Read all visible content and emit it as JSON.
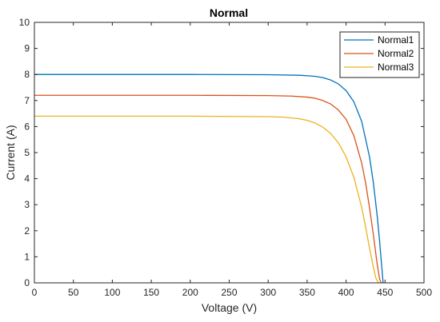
{
  "chart_data": {
    "type": "line",
    "title": "Normal",
    "xlabel": "Voltage (V)",
    "ylabel": "Current (A)",
    "xlim": [
      0,
      500
    ],
    "ylim": [
      0,
      10
    ],
    "xticks": [
      0,
      50,
      100,
      150,
      200,
      250,
      300,
      350,
      400,
      450,
      500
    ],
    "yticks": [
      0,
      1,
      2,
      3,
      4,
      5,
      6,
      7,
      8,
      9,
      10
    ],
    "grid": false,
    "legend_position": "top-right",
    "series": [
      {
        "name": "Normal1",
        "color": "#0072BD",
        "x": [
          0,
          100,
          200,
          300,
          340,
          360,
          370,
          380,
          390,
          400,
          410,
          420,
          430,
          435,
          440,
          443,
          446,
          447.5
        ],
        "y": [
          8.0,
          8.0,
          8.0,
          7.99,
          7.97,
          7.93,
          7.88,
          7.79,
          7.64,
          7.38,
          6.95,
          6.2,
          4.85,
          3.85,
          2.55,
          1.6,
          0.55,
          0
        ]
      },
      {
        "name": "Normal2",
        "color": "#D95319",
        "x": [
          0,
          100,
          200,
          300,
          330,
          350,
          360,
          370,
          380,
          390,
          400,
          410,
          420,
          425,
          430,
          435,
          440,
          443,
          445
        ],
        "y": [
          7.2,
          7.2,
          7.2,
          7.19,
          7.17,
          7.13,
          7.09,
          7.0,
          6.87,
          6.64,
          6.28,
          5.65,
          4.6,
          3.85,
          2.9,
          1.85,
          0.7,
          0.15,
          0
        ]
      },
      {
        "name": "Normal3",
        "color": "#EDB120",
        "x": [
          0,
          100,
          200,
          300,
          320,
          340,
          350,
          360,
          370,
          380,
          390,
          400,
          410,
          420,
          425,
          430,
          435,
          438,
          441.5
        ],
        "y": [
          6.4,
          6.4,
          6.4,
          6.38,
          6.36,
          6.3,
          6.24,
          6.14,
          5.98,
          5.74,
          5.38,
          4.84,
          4.05,
          2.9,
          2.15,
          1.35,
          0.6,
          0.2,
          0
        ]
      }
    ]
  }
}
